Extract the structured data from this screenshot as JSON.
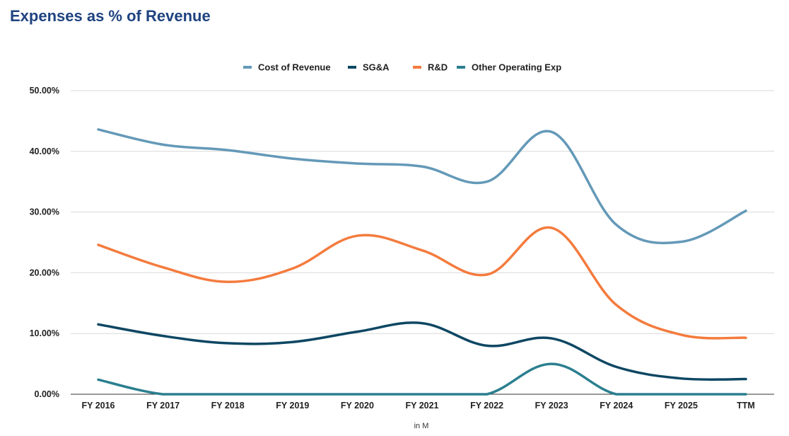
{
  "title": "Expenses as % of Revenue",
  "chart_data": {
    "type": "line",
    "title": "Expenses as % of Revenue",
    "xlabel": "in M",
    "ylabel": "",
    "ylim": [
      0,
      50
    ],
    "yticks": [
      "0.00%",
      "10.00%",
      "20.00%",
      "30.00%",
      "40.00%",
      "50.00%"
    ],
    "grid": true,
    "legend": "top-center",
    "categories": [
      "FY 2016",
      "FY 2017",
      "FY 2018",
      "FY 2019",
      "FY 2020",
      "FY 2021",
      "FY 2022",
      "FY 2023",
      "FY 2024",
      "FY 2025",
      "TTM"
    ],
    "series": [
      {
        "name": "Cost of Revenue",
        "color": "#6499b8",
        "values": [
          43.6,
          41.1,
          40.2,
          38.8,
          38.0,
          37.5,
          35.0,
          43.2,
          27.9,
          25.1,
          30.2
        ]
      },
      {
        "name": "SG&A",
        "color": "#0e4763",
        "values": [
          11.5,
          9.6,
          8.4,
          8.6,
          10.3,
          11.7,
          8.0,
          9.2,
          4.5,
          2.6,
          2.5
        ]
      },
      {
        "name": "R&D",
        "color": "#f47b3d",
        "values": [
          24.6,
          20.9,
          18.5,
          20.7,
          26.1,
          23.7,
          19.7,
          27.4,
          14.7,
          9.8,
          9.3
        ]
      },
      {
        "name": "Other Operating Exp",
        "color": "#2b7f8f",
        "values": [
          2.4,
          0,
          0,
          0,
          0,
          0,
          0,
          5.0,
          0,
          0,
          0
        ]
      }
    ]
  }
}
